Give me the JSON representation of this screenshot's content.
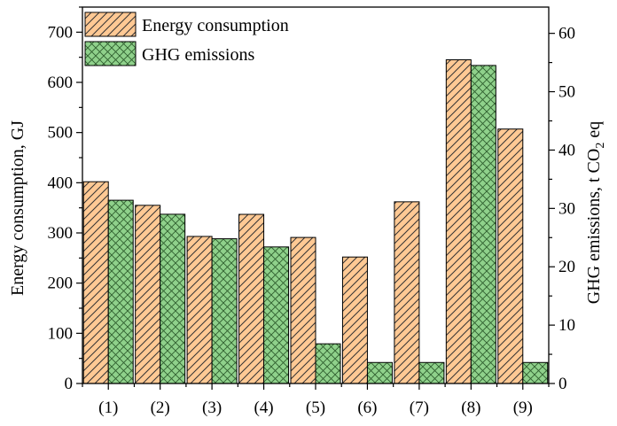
{
  "chart_data": {
    "type": "bar",
    "categories": [
      "(1)",
      "(2)",
      "(3)",
      "(4)",
      "(5)",
      "(6)",
      "(7)",
      "(8)",
      "(9)"
    ],
    "series": [
      {
        "name": "Energy consumption",
        "axis": "left",
        "color": "#FFC994",
        "pattern": "diagonal-hatch",
        "values": [
          402,
          355,
          293,
          337,
          291,
          252,
          362,
          645,
          507
        ]
      },
      {
        "name": "GHG emissions",
        "axis": "right",
        "color": "#8FD18B",
        "pattern": "cross-hatch",
        "values": [
          31.4,
          29.0,
          24.8,
          23.4,
          6.8,
          3.6,
          3.6,
          54.5,
          3.6
        ]
      }
    ],
    "y_left": {
      "label": "Energy consumption, GJ",
      "ylim": [
        0,
        750
      ],
      "ticks": [
        0,
        100,
        200,
        300,
        400,
        500,
        600,
        700
      ]
    },
    "y_right": {
      "label_main": "GHG emissions, t CO",
      "label_sub": "2",
      "label_tail": " eq",
      "ylim": [
        0,
        64.5
      ],
      "ticks": [
        0,
        10,
        20,
        30,
        40,
        50,
        60
      ]
    },
    "legend_position": "top-left",
    "grid": false
  }
}
